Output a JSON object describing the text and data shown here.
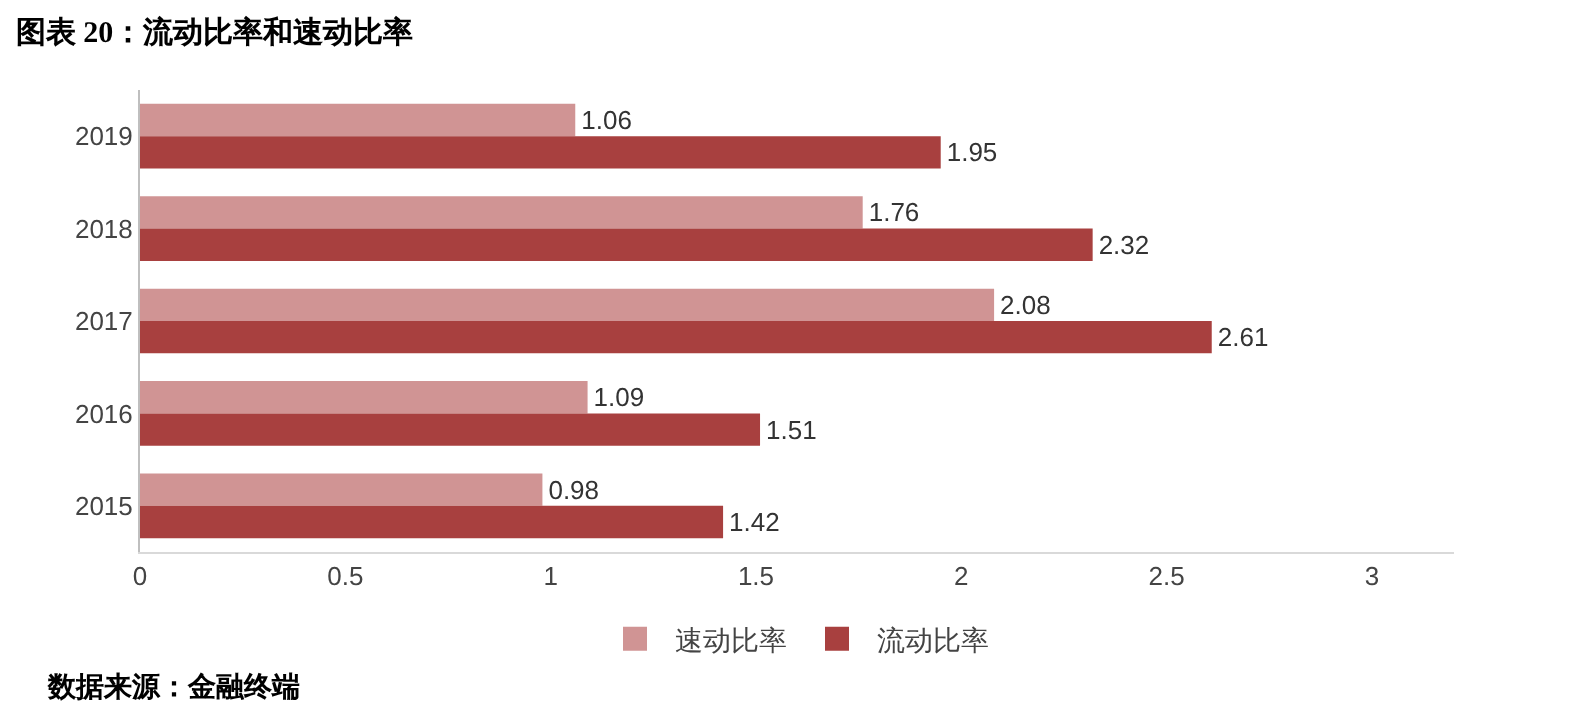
{
  "chart_data": {
    "type": "bar",
    "orientation": "horizontal",
    "title": "图表 20：流动比率和速动比率",
    "categories": [
      "2019",
      "2018",
      "2017",
      "2016",
      "2015"
    ],
    "series": [
      {
        "name": "速动比率",
        "color": "#d09494",
        "values": [
          1.06,
          1.76,
          2.08,
          1.09,
          0.98
        ]
      },
      {
        "name": "流动比率",
        "color": "#a8403f",
        "values": [
          1.95,
          2.32,
          2.61,
          1.51,
          1.42
        ]
      }
    ],
    "xlim": [
      0,
      3.2
    ],
    "xticks": [
      0,
      0.5,
      1,
      1.5,
      2,
      2.5,
      3
    ],
    "legend": "bottom",
    "data_labels": true,
    "annotations": [
      "数据来源：金融终端"
    ]
  }
}
